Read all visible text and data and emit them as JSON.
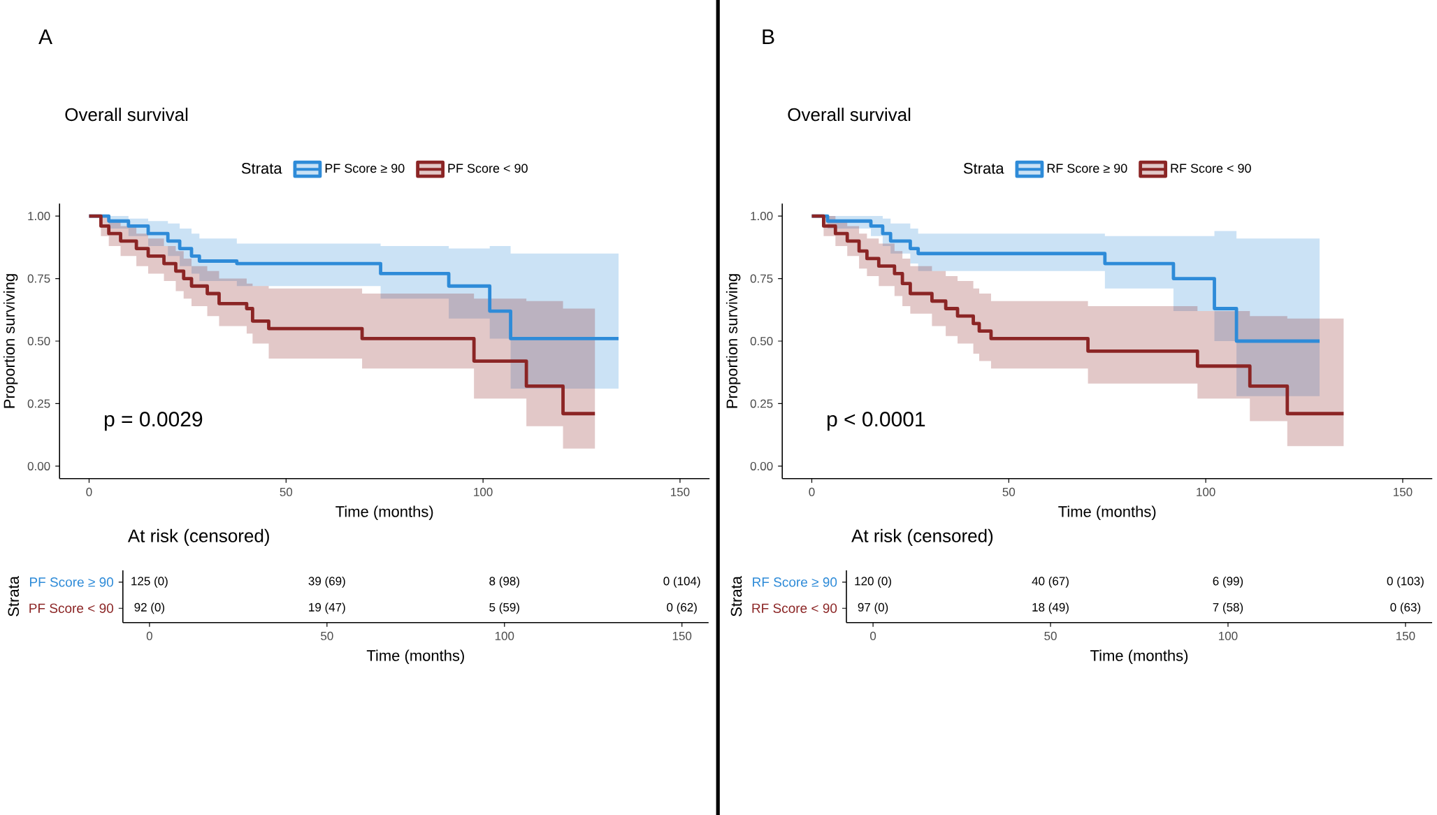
{
  "chart_data": [
    {
      "type": "step",
      "title": "Overall survival",
      "xlabel": "Time (months)",
      "ylabel": "Proportion surviving",
      "legend_title": "Strata",
      "legend": "top",
      "xlim": [
        -7.5,
        157.5
      ],
      "ylim": [
        -0.05,
        1.05
      ],
      "xticks": [
        0,
        50,
        100,
        150
      ],
      "yticks": [
        {
          "value": 0,
          "label": "0.00"
        },
        {
          "value": 0.25,
          "label": "0.25"
        },
        {
          "value": 0.5,
          "label": "0.50"
        },
        {
          "value": 0.75,
          "label": "0.75"
        },
        {
          "value": 1,
          "label": "1.00"
        }
      ],
      "annotations": [
        "A",
        "p = 0.0029"
      ],
      "series": [
        {
          "name": "PF Score ≥ 90",
          "color": "#2e8bd8",
          "x": [
            0,
            5,
            10,
            15,
            20,
            23,
            26,
            28,
            37.5,
            74,
            91.3,
            101.7,
            107,
            134.4
          ],
          "values": [
            1,
            0.98,
            0.96,
            0.93,
            0.9,
            0.87,
            0.84,
            0.82,
            0.81,
            0.77,
            0.72,
            0.62,
            0.51,
            0.51
          ],
          "upper": [
            1,
            1,
            0.99,
            0.98,
            0.97,
            0.95,
            0.93,
            0.91,
            0.89,
            0.88,
            0.87,
            0.88,
            0.85,
            0.85
          ],
          "lower": [
            1,
            0.95,
            0.92,
            0.88,
            0.84,
            0.8,
            0.77,
            0.74,
            0.72,
            0.67,
            0.59,
            0.51,
            0.31,
            0.31
          ]
        },
        {
          "name": "PF Score < 90",
          "color": "#8b2525",
          "x": [
            0,
            3,
            5,
            8,
            12,
            15,
            19,
            22,
            24,
            26,
            30,
            33,
            40,
            41.5,
            45.6,
            69.3,
            97.7,
            111,
            120.3,
            128.4
          ],
          "values": [
            1,
            0.96,
            0.93,
            0.9,
            0.87,
            0.84,
            0.81,
            0.78,
            0.75,
            0.72,
            0.69,
            0.65,
            0.63,
            0.58,
            0.55,
            0.51,
            0.42,
            0.32,
            0.21,
            0.21
          ],
          "upper": [
            1,
            1,
            0.98,
            0.96,
            0.93,
            0.91,
            0.88,
            0.86,
            0.83,
            0.8,
            0.78,
            0.75,
            0.73,
            0.72,
            0.71,
            0.69,
            0.67,
            0.66,
            0.63,
            0.63
          ],
          "lower": [
            1,
            0.92,
            0.88,
            0.84,
            0.8,
            0.77,
            0.74,
            0.7,
            0.67,
            0.64,
            0.6,
            0.56,
            0.53,
            0.49,
            0.43,
            0.39,
            0.27,
            0.16,
            0.07,
            0.07
          ]
        }
      ]
    },
    {
      "type": "heatmap",
      "title": "At risk (censored)",
      "xlabel": "Time (months)",
      "ylabel": "Strata",
      "categories": [
        "0",
        "50",
        "100",
        "150"
      ],
      "y_categories": [
        "PF Score ≥ 90",
        "PF Score < 90"
      ],
      "colors": [
        "#2e8bd8",
        "#8b2525"
      ],
      "cells": [
        [
          null,
          null,
          null,
          null
        ],
        [
          null,
          null,
          null,
          null
        ]
      ],
      "cell_labels": [
        [
          "125 (0)",
          "39 (69)",
          "8 (98)",
          "0 (104)"
        ],
        [
          "92 (0)",
          "19 (47)",
          "5 (59)",
          "0 (62)"
        ]
      ]
    },
    {
      "type": "step",
      "title": "Overall survival",
      "xlabel": "Time (months)",
      "ylabel": "Proportion surviving",
      "legend_title": "Strata",
      "legend": "top",
      "xlim": [
        -7.5,
        157.5
      ],
      "ylim": [
        -0.05,
        1.05
      ],
      "xticks": [
        0,
        50,
        100,
        150
      ],
      "yticks": [
        {
          "value": 0,
          "label": "0.00"
        },
        {
          "value": 0.25,
          "label": "0.25"
        },
        {
          "value": 0.5,
          "label": "0.50"
        },
        {
          "value": 0.75,
          "label": "0.75"
        },
        {
          "value": 1,
          "label": "1.00"
        }
      ],
      "annotations": [
        "B",
        "p < 0.0001"
      ],
      "series": [
        {
          "name": "RF Score ≥ 90",
          "color": "#2e8bd8",
          "x": [
            0,
            4,
            15,
            18,
            20,
            25,
            27,
            74.4,
            91.8,
            102.2,
            107.8,
            128.9
          ],
          "values": [
            1,
            0.98,
            0.96,
            0.93,
            0.9,
            0.87,
            0.85,
            0.81,
            0.75,
            0.63,
            0.5,
            0.5
          ],
          "upper": [
            1,
            1,
            1,
            0.99,
            0.97,
            0.95,
            0.93,
            0.92,
            0.92,
            0.94,
            0.91,
            0.91
          ],
          "lower": [
            1,
            0.95,
            0.92,
            0.88,
            0.85,
            0.81,
            0.78,
            0.71,
            0.62,
            0.5,
            0.28,
            0.28
          ]
        },
        {
          "name": "RF Score < 90",
          "color": "#8b2525",
          "x": [
            0,
            3,
            6,
            9,
            12,
            14,
            17,
            21,
            23,
            25,
            30.5,
            34,
            37,
            41,
            42.5,
            45.5,
            70.1,
            97.9,
            111.2,
            120.7,
            135
          ],
          "values": [
            1,
            0.96,
            0.93,
            0.9,
            0.86,
            0.83,
            0.8,
            0.77,
            0.73,
            0.69,
            0.66,
            0.63,
            0.6,
            0.57,
            0.54,
            0.51,
            0.46,
            0.4,
            0.32,
            0.21,
            0.21
          ],
          "upper": [
            1,
            1,
            0.98,
            0.96,
            0.93,
            0.91,
            0.89,
            0.86,
            0.83,
            0.8,
            0.78,
            0.76,
            0.74,
            0.71,
            0.69,
            0.66,
            0.64,
            0.62,
            0.6,
            0.59,
            0.59
          ],
          "lower": [
            1,
            0.92,
            0.88,
            0.84,
            0.79,
            0.76,
            0.72,
            0.68,
            0.64,
            0.61,
            0.56,
            0.52,
            0.49,
            0.45,
            0.42,
            0.39,
            0.33,
            0.27,
            0.18,
            0.08,
            0.08
          ]
        }
      ]
    },
    {
      "type": "heatmap",
      "title": "At risk (censored)",
      "xlabel": "Time (months)",
      "ylabel": "Strata",
      "categories": [
        "0",
        "50",
        "100",
        "150"
      ],
      "y_categories": [
        "RF Score ≥ 90",
        "RF Score < 90"
      ],
      "colors": [
        "#2e8bd8",
        "#8b2525"
      ],
      "cells": [
        [
          null,
          null,
          null,
          null
        ],
        [
          null,
          null,
          null,
          null
        ]
      ],
      "cell_labels": [
        [
          "120 (0)",
          "40 (67)",
          "6 (99)",
          "0 (103)"
        ],
        [
          "97 (0)",
          "18 (49)",
          "7 (58)",
          "0 (63)"
        ]
      ]
    }
  ]
}
